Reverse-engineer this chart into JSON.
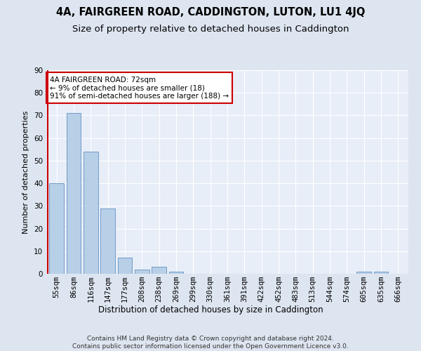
{
  "title": "4A, FAIRGREEN ROAD, CADDINGTON, LUTON, LU1 4JQ",
  "subtitle": "Size of property relative to detached houses in Caddington",
  "xlabel": "Distribution of detached houses by size in Caddington",
  "ylabel": "Number of detached properties",
  "categories": [
    "55sqm",
    "86sqm",
    "116sqm",
    "147sqm",
    "177sqm",
    "208sqm",
    "238sqm",
    "269sqm",
    "299sqm",
    "330sqm",
    "361sqm",
    "391sqm",
    "422sqm",
    "452sqm",
    "483sqm",
    "513sqm",
    "544sqm",
    "574sqm",
    "605sqm",
    "635sqm",
    "666sqm"
  ],
  "values": [
    40,
    71,
    54,
    29,
    7,
    2,
    3,
    1,
    0,
    0,
    0,
    0,
    0,
    0,
    0,
    0,
    0,
    0,
    1,
    1,
    0
  ],
  "bar_color": "#b8cfe8",
  "bar_edge_color": "#6090c0",
  "annotation_text": "4A FAIRGREEN ROAD: 72sqm\n← 9% of detached houses are smaller (18)\n91% of semi-detached houses are larger (188) →",
  "annotation_box_color": "white",
  "annotation_box_edge_color": "#cc0000",
  "red_vline_color": "#cc0000",
  "ylim": [
    0,
    90
  ],
  "yticks": [
    0,
    10,
    20,
    30,
    40,
    50,
    60,
    70,
    80,
    90
  ],
  "footer": "Contains HM Land Registry data © Crown copyright and database right 2024.\nContains public sector information licensed under the Open Government Licence v3.0.",
  "bg_color": "#dde5f0",
  "plot_bg_color": "#e8eef8",
  "title_fontsize": 10.5,
  "subtitle_fontsize": 9.5,
  "axis_label_fontsize": 8.5,
  "tick_fontsize": 7.5,
  "annotation_fontsize": 7.5,
  "footer_fontsize": 6.5,
  "ylabel_fontsize": 8
}
